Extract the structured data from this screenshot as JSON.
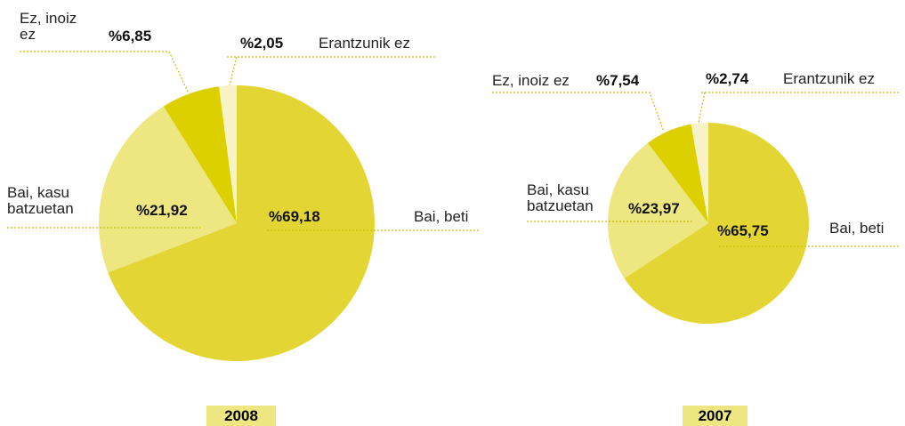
{
  "chart_data": [
    {
      "type": "pie",
      "title": "2008",
      "categories": [
        "Bai, beti",
        "Bai, kasu batzuetan",
        "Ez, inoiz ez",
        "Erantzunik ez"
      ],
      "values": [
        69.18,
        21.92,
        6.85,
        2.05
      ],
      "value_labels": [
        "%69,18",
        "%21,92",
        "%6,85",
        "%2,05"
      ],
      "colors": [
        "#e3d634",
        "#ede681",
        "#ddd000",
        "#f7f3c6"
      ]
    },
    {
      "type": "pie",
      "title": "2007",
      "categories": [
        "Bai, beti",
        "Bai, kasu batzuetan",
        "Ez, inoiz ez",
        "Erantzunik ez"
      ],
      "values": [
        65.75,
        23.97,
        7.54,
        2.74
      ],
      "value_labels": [
        "%65,75",
        "%23,97",
        "%7,54",
        "%2,74"
      ],
      "colors": [
        "#e3d634",
        "#ede681",
        "#ddd000",
        "#f7f3c6"
      ]
    }
  ]
}
